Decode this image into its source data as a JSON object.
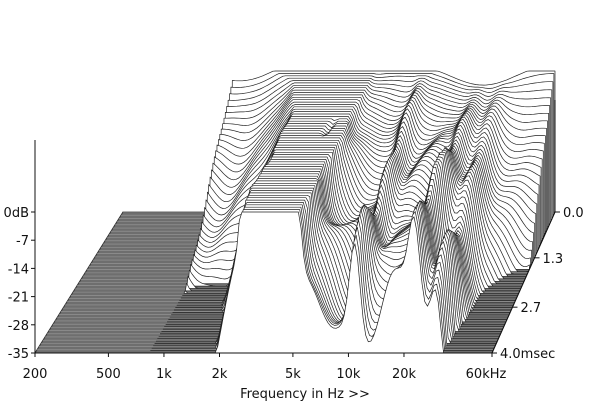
{
  "chart_data": {
    "type": "waterfall",
    "xlabel": "Frequency in Hz >>",
    "x_scale": "log",
    "x_range_hz": [
      200,
      60000
    ],
    "x_ticks": [
      {
        "value": 200,
        "label": "200"
      },
      {
        "value": 500,
        "label": "500"
      },
      {
        "value": 1000,
        "label": "1k"
      },
      {
        "value": 2000,
        "label": "2k"
      },
      {
        "value": 5000,
        "label": "5k"
      },
      {
        "value": 10000,
        "label": "10k"
      },
      {
        "value": 20000,
        "label": "20k"
      },
      {
        "value": 60000,
        "label": "60kHz"
      }
    ],
    "y_range_db": [
      -35,
      0
    ],
    "y_ticks": [
      {
        "value": 0,
        "label": "0dB"
      },
      {
        "value": -7,
        "label": "-7"
      },
      {
        "value": -14,
        "label": "-14"
      },
      {
        "value": -21,
        "label": "-21"
      },
      {
        "value": -28,
        "label": "-28"
      },
      {
        "value": -35,
        "label": "-35"
      }
    ],
    "t_range_ms": [
      0,
      4.0
    ],
    "t_ticks": [
      {
        "value": 0.0,
        "label": "0.0"
      },
      {
        "value": 1.3,
        "label": "1.3"
      },
      {
        "value": 2.7,
        "label": "2.7"
      },
      {
        "value": 4.0,
        "label": "4.0msec"
      }
    ],
    "slice_count": 60,
    "floor_color": "#6e6e6e",
    "line_color": "#222222",
    "fill_color": "#ffffff"
  }
}
